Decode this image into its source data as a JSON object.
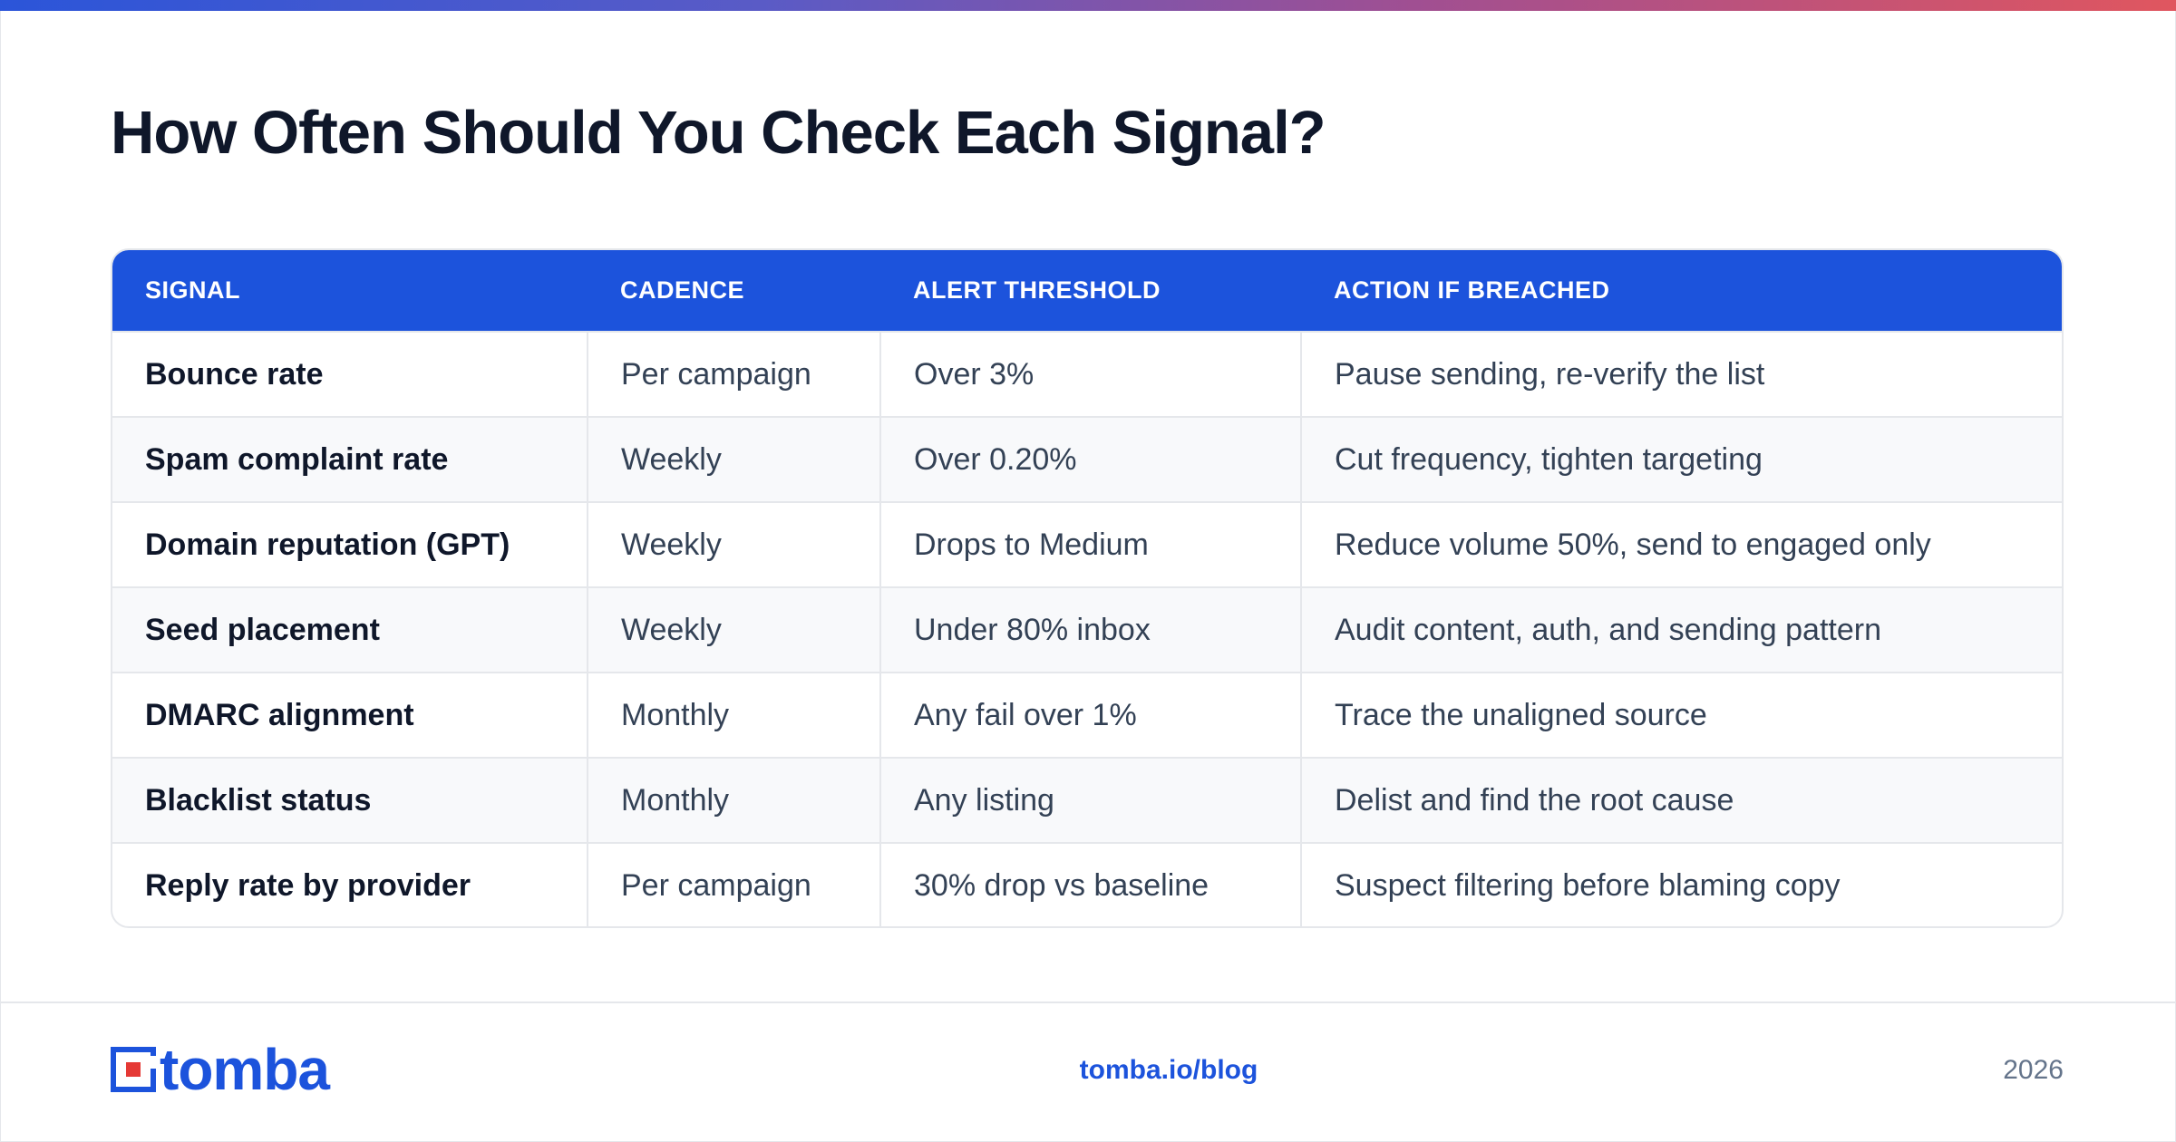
{
  "page": {
    "title": "How Often Should You Check Each Signal?"
  },
  "table": {
    "headers": [
      "SIGNAL",
      "CADENCE",
      "ALERT THRESHOLD",
      "ACTION IF BREACHED"
    ],
    "rows": [
      [
        "Bounce rate",
        "Per campaign",
        "Over 3%",
        "Pause sending, re-verify the list"
      ],
      [
        "Spam complaint rate",
        "Weekly",
        "Over 0.20%",
        "Cut frequency, tighten targeting"
      ],
      [
        "Domain reputation (GPT)",
        "Weekly",
        "Drops to Medium",
        "Reduce volume 50%, send to engaged only"
      ],
      [
        "Seed placement",
        "Weekly",
        "Under 80% inbox",
        "Audit content, auth, and sending pattern"
      ],
      [
        "DMARC alignment",
        "Monthly",
        "Any fail over 1%",
        "Trace the unaligned source"
      ],
      [
        "Blacklist status",
        "Monthly",
        "Any listing",
        "Delist and find the root cause"
      ],
      [
        "Reply rate by provider",
        "Per campaign",
        "30% drop vs baseline",
        "Suspect filtering before blaming copy"
      ]
    ]
  },
  "footer": {
    "brand": "tomba",
    "link": "tomba.io/blog",
    "year": "2026"
  },
  "colors": {
    "accent_blue": "#1c53dc",
    "logo_red": "#e53935",
    "title_text": "#0f172a",
    "body_text": "#334155",
    "year_text": "#64748b",
    "border": "#e5e7eb",
    "zebra_row": "#f8f9fb"
  },
  "icons": {
    "logo": "tomba-logo-mark"
  }
}
